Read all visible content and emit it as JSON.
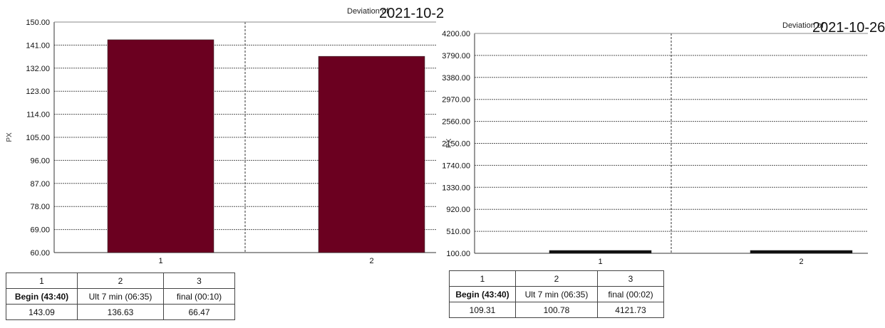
{
  "chart_data": [
    {
      "type": "bar",
      "ylabel": "PX",
      "xlabel": "",
      "ylim": [
        60,
        150
      ],
      "yticks": [
        "150.00",
        "141.00",
        "132.00",
        "123.00",
        "114.00",
        "105.00",
        "96.00",
        "87.00",
        "78.00",
        "69.00",
        "60.00"
      ],
      "categories": [
        "1",
        "2"
      ],
      "values": [
        143.09,
        136.63
      ],
      "bar_color": "#6b0020",
      "grid": true,
      "legend_title": "Deviation of",
      "date_text": "2021-10-2",
      "table": {
        "columns": [
          "1",
          "2",
          "3"
        ],
        "labels": [
          "Begin (43:40)",
          "Ult 7 min (06:35)",
          "final (00:10)"
        ],
        "values": [
          "143.09",
          "136.63",
          "66.47"
        ]
      }
    },
    {
      "type": "bar",
      "ylabel": "PX",
      "xlabel": "",
      "ylim": [
        100,
        4200
      ],
      "yticks": [
        "4200.00",
        "3790.00",
        "3380.00",
        "2970.00",
        "2560.00",
        "2150.00",
        "1740.00",
        "1330.00",
        "920.00",
        "510.00",
        "100.00"
      ],
      "categories": [
        "1",
        "2"
      ],
      "values": [
        109.31,
        100.78
      ],
      "bar_color": "#111111",
      "grid": true,
      "legend_title": "Deviation of",
      "date_text": "2021-10-26",
      "table": {
        "columns": [
          "1",
          "2",
          "3"
        ],
        "labels": [
          "Begin (43:40)",
          "Ult 7 min (06:35)",
          "final (00:02)"
        ],
        "values": [
          "109.31",
          "100.78",
          "4121.73"
        ]
      }
    }
  ]
}
